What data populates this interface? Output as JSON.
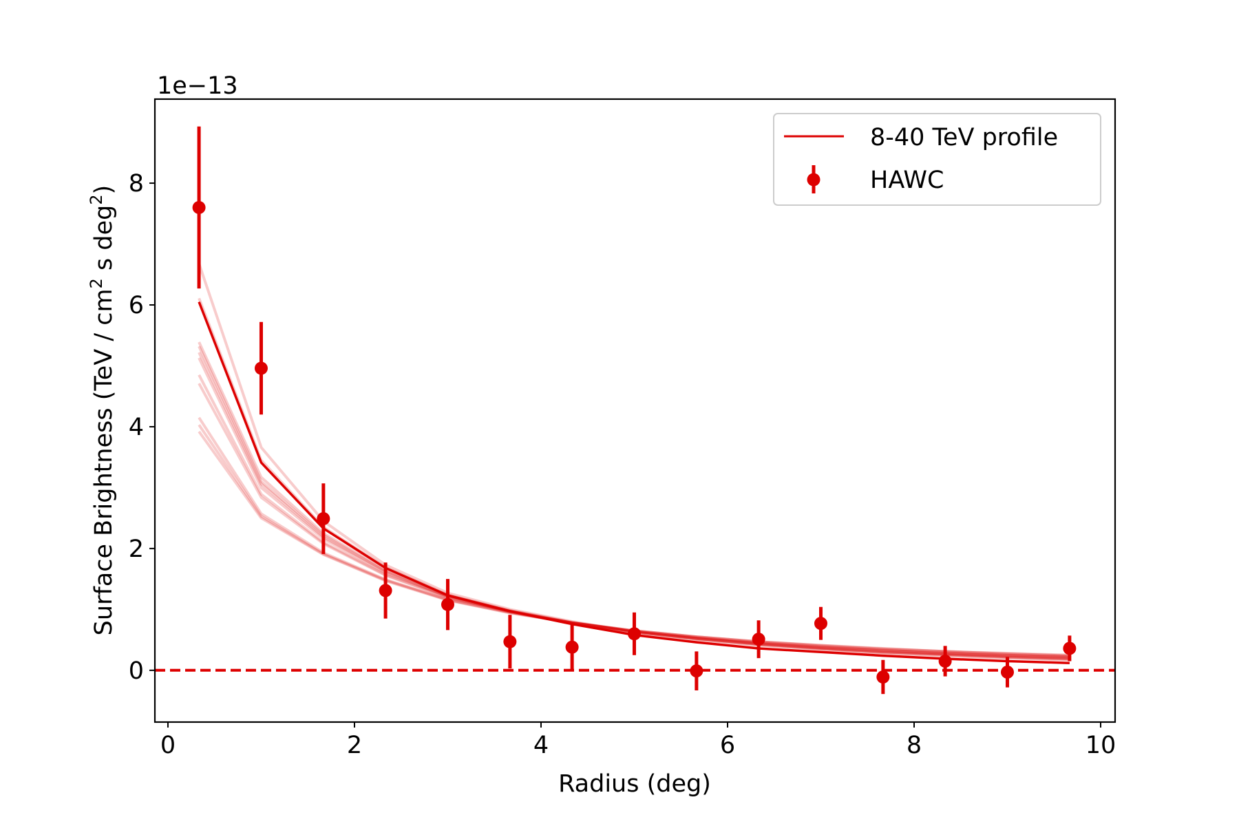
{
  "chart_data": {
    "type": "line",
    "title": "",
    "xlabel": "Radius (deg)",
    "ylabel_main": "Surface Brightness (TeV / cm",
    "ylabel_sup1": "2",
    "ylabel_mid": " s deg",
    "ylabel_sup2": "2",
    "ylabel_end": ")",
    "y_offset_text": "1e−13",
    "y_scale_factor": 1e-13,
    "xlim": [
      -0.14,
      10.155
    ],
    "ylim": [
      -0.85,
      9.38
    ],
    "xticks": [
      0,
      2,
      4,
      6,
      8,
      10
    ],
    "xtick_labels": [
      "0",
      "2",
      "4",
      "6",
      "8",
      "10"
    ],
    "yticks": [
      0,
      2,
      4,
      6,
      8
    ],
    "ytick_labels": [
      "0",
      "2",
      "4",
      "6",
      "8"
    ],
    "grid": false,
    "legend": {
      "placement": "top-right",
      "entries": [
        {
          "label": "8-40 TeV profile",
          "type": "line"
        },
        {
          "label": "HAWC",
          "type": "errorbar"
        }
      ]
    },
    "colors": {
      "profile": "#dd0000",
      "realizations": "#dd0000",
      "hawc": "#dd0000",
      "zero_line": "#dd0000",
      "legend_border": "#cccccc"
    },
    "x": [
      0.333,
      1.0,
      1.667,
      2.333,
      3.0,
      3.667,
      4.333,
      5.0,
      5.667,
      6.333,
      7.0,
      7.667,
      8.333,
      9.0,
      9.667
    ],
    "series": [
      {
        "name": "8-40 TeV profile",
        "style": "line",
        "values": [
          6.05,
          3.41,
          2.33,
          1.68,
          1.23,
          0.97,
          0.76,
          0.58,
          0.46,
          0.36,
          0.3,
          0.24,
          0.19,
          0.15,
          0.12
        ]
      },
      {
        "name": "HAWC",
        "style": "errorbar",
        "values": [
          7.6,
          4.96,
          2.49,
          1.31,
          1.08,
          0.47,
          0.38,
          0.6,
          -0.01,
          0.51,
          0.77,
          -0.11,
          0.15,
          -0.03,
          0.36
        ],
        "errors": [
          1.33,
          0.76,
          0.58,
          0.46,
          0.42,
          0.44,
          0.37,
          0.35,
          0.32,
          0.31,
          0.27,
          0.28,
          0.25,
          0.25,
          0.21
        ]
      }
    ],
    "realizations": [
      [
        6.68,
        3.66,
        2.45,
        1.73,
        1.27,
        1.0,
        0.8,
        0.63,
        0.51,
        0.42,
        0.35,
        0.29,
        0.25,
        0.21,
        0.18
      ],
      [
        6.11,
        3.45,
        2.35,
        1.69,
        1.24,
        0.98,
        0.78,
        0.62,
        0.5,
        0.41,
        0.34,
        0.28,
        0.24,
        0.2,
        0.17
      ],
      [
        5.39,
        3.17,
        2.25,
        1.65,
        1.23,
        0.98,
        0.79,
        0.63,
        0.52,
        0.43,
        0.36,
        0.3,
        0.26,
        0.22,
        0.19
      ],
      [
        5.32,
        3.1,
        2.22,
        1.63,
        1.22,
        0.97,
        0.78,
        0.63,
        0.52,
        0.43,
        0.36,
        0.3,
        0.26,
        0.22,
        0.19
      ],
      [
        5.22,
        3.06,
        2.19,
        1.62,
        1.21,
        0.97,
        0.78,
        0.63,
        0.52,
        0.43,
        0.37,
        0.31,
        0.27,
        0.23,
        0.2
      ],
      [
        5.13,
        3.0,
        2.16,
        1.6,
        1.21,
        0.97,
        0.78,
        0.64,
        0.53,
        0.44,
        0.37,
        0.32,
        0.27,
        0.24,
        0.21
      ],
      [
        4.85,
        2.89,
        2.1,
        1.57,
        1.2,
        0.96,
        0.78,
        0.64,
        0.53,
        0.45,
        0.38,
        0.33,
        0.28,
        0.25,
        0.22
      ],
      [
        4.71,
        2.84,
        2.08,
        1.56,
        1.19,
        0.96,
        0.78,
        0.64,
        0.54,
        0.45,
        0.39,
        0.33,
        0.29,
        0.25,
        0.22
      ],
      [
        4.15,
        2.57,
        1.93,
        1.49,
        1.16,
        0.95,
        0.78,
        0.65,
        0.55,
        0.47,
        0.4,
        0.35,
        0.31,
        0.27,
        0.24
      ],
      [
        4.03,
        2.53,
        1.91,
        1.48,
        1.16,
        0.95,
        0.78,
        0.65,
        0.55,
        0.47,
        0.41,
        0.35,
        0.31,
        0.27,
        0.24
      ],
      [
        3.92,
        2.5,
        1.9,
        1.47,
        1.15,
        0.94,
        0.78,
        0.65,
        0.55,
        0.47,
        0.41,
        0.36,
        0.31,
        0.28,
        0.25
      ]
    ],
    "reference_lines": [
      {
        "name": "zero-line",
        "y": 0,
        "style": "dashed"
      }
    ]
  }
}
